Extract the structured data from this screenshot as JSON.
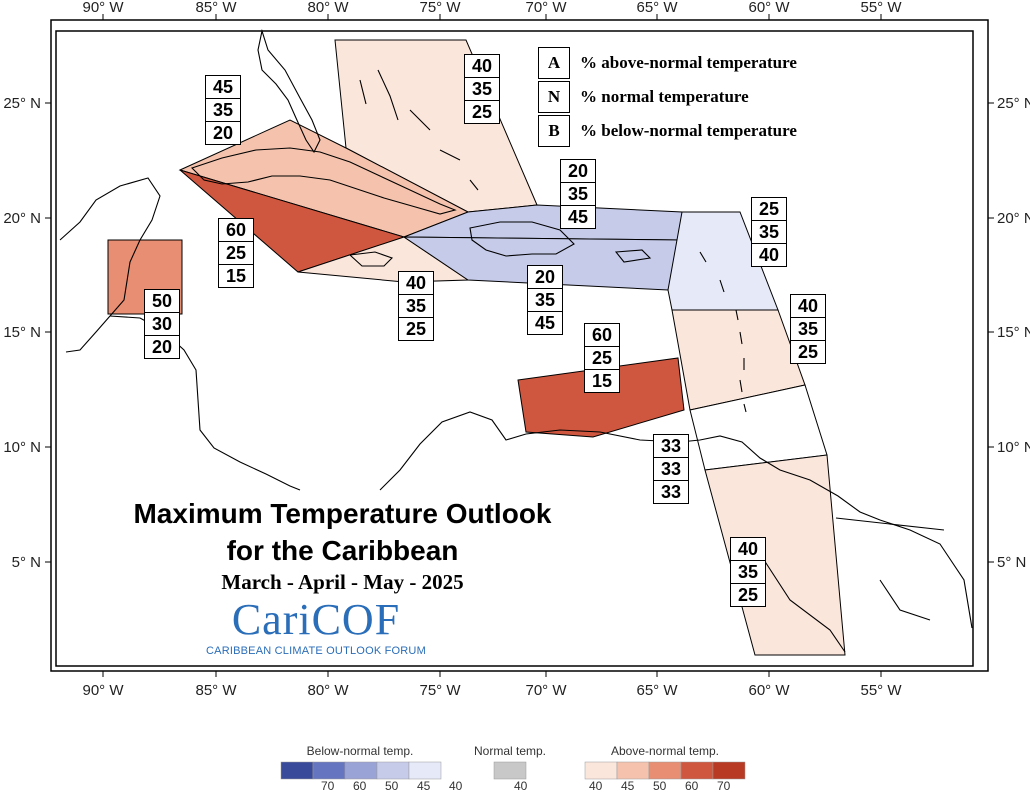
{
  "map": {
    "longitude_labels": [
      "90° W",
      "85° W",
      "80° W",
      "75° W",
      "70° W",
      "65° W",
      "60° W",
      "55° W"
    ],
    "latitude_labels": [
      "25° N",
      "20° N",
      "15° N",
      "10° N",
      "5° N"
    ],
    "title_line1": "Maximum Temperature Outlook",
    "title_line2": "for the Caribbean",
    "season": "March - April - May - 2025"
  },
  "legend": {
    "above_key": "A",
    "above_label": "% above-normal temperature",
    "normal_key": "N",
    "normal_label": "% normal temperature",
    "below_key": "B",
    "below_label": "% below-normal temperature"
  },
  "logo": {
    "name": "CariCOF",
    "subtitle": "CARIBBEAN CLIMATE OUTLOOK FORUM",
    "color": "#2a6db8"
  },
  "colors": {
    "below_scale": [
      "#3a4a9a",
      "#6675c0",
      "#9aa3d6",
      "#c6cbea",
      "#e6e9f7"
    ],
    "normal": "#c8c8c8",
    "above_scale": [
      "#fbe6dc",
      "#f5c3ad",
      "#e88e72",
      "#d0573f",
      "#b83a25"
    ]
  },
  "regions": [
    {
      "name": "bahamas",
      "above": "40",
      "normal": "35",
      "below": "25",
      "color": "#fbe6dc"
    },
    {
      "name": "cuba-north",
      "above": "45",
      "normal": "35",
      "below": "20",
      "color": "#f5c3ad"
    },
    {
      "name": "western-caribbean",
      "above": "60",
      "normal": "25",
      "below": "15",
      "color": "#d0573f"
    },
    {
      "name": "jamaica",
      "above": "40",
      "normal": "35",
      "below": "25",
      "color": "#fbe6dc"
    },
    {
      "name": "hispaniola-north",
      "above": "20",
      "normal": "35",
      "below": "45",
      "color": "#c6cbea"
    },
    {
      "name": "hispaniola-south",
      "above": "20",
      "normal": "35",
      "below": "45",
      "color": "#c6cbea"
    },
    {
      "name": "leeward-islands",
      "above": "25",
      "normal": "35",
      "below": "40",
      "color": "#e6e9f7"
    },
    {
      "name": "windward-islands",
      "above": "40",
      "normal": "35",
      "below": "25",
      "color": "#fbe6dc"
    },
    {
      "name": "belize",
      "above": "50",
      "normal": "30",
      "below": "20",
      "color": "#e88e72"
    },
    {
      "name": "abc-islands",
      "above": "60",
      "normal": "25",
      "below": "15",
      "color": "#d0573f"
    },
    {
      "name": "trinidad-tobago",
      "above": "33",
      "normal": "33",
      "below": "33",
      "color": "#ffffff"
    },
    {
      "name": "guianas",
      "above": "40",
      "normal": "35",
      "below": "25",
      "color": "#fbe6dc"
    }
  ],
  "color_scale": {
    "below_title": "Below-normal temp.",
    "normal_title": "Normal temp.",
    "above_title": "Above-normal temp.",
    "below_ticks": [
      "70",
      "60",
      "50",
      "45",
      "40"
    ],
    "normal_ticks": [
      "40"
    ],
    "above_ticks": [
      "40",
      "45",
      "50",
      "60",
      "70"
    ]
  }
}
